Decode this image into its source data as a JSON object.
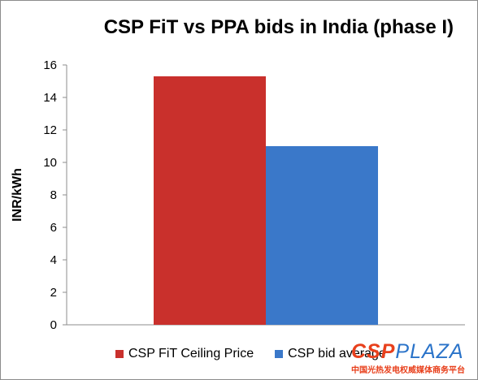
{
  "chart_data": {
    "type": "bar",
    "title": "CSP FiT vs PPA bids in India (phase I)",
    "ylabel": "INR/kWh",
    "xlabel": "",
    "ylim": [
      0,
      16
    ],
    "yticks": [
      0,
      2,
      4,
      6,
      8,
      10,
      12,
      14,
      16
    ],
    "grid": false,
    "legend_position": "bottom",
    "series": [
      {
        "name": "CSP FiT Ceiling Price",
        "values": [
          15.3
        ],
        "color": "#c9302c"
      },
      {
        "name": "CSP bid average",
        "values": [
          11.0
        ],
        "color": "#3a78c9"
      }
    ]
  },
  "watermark": {
    "logo_part1": "CSP",
    "logo_part2": "PLAZA",
    "subtitle": "中国光热发电权威媒体商务平台"
  }
}
